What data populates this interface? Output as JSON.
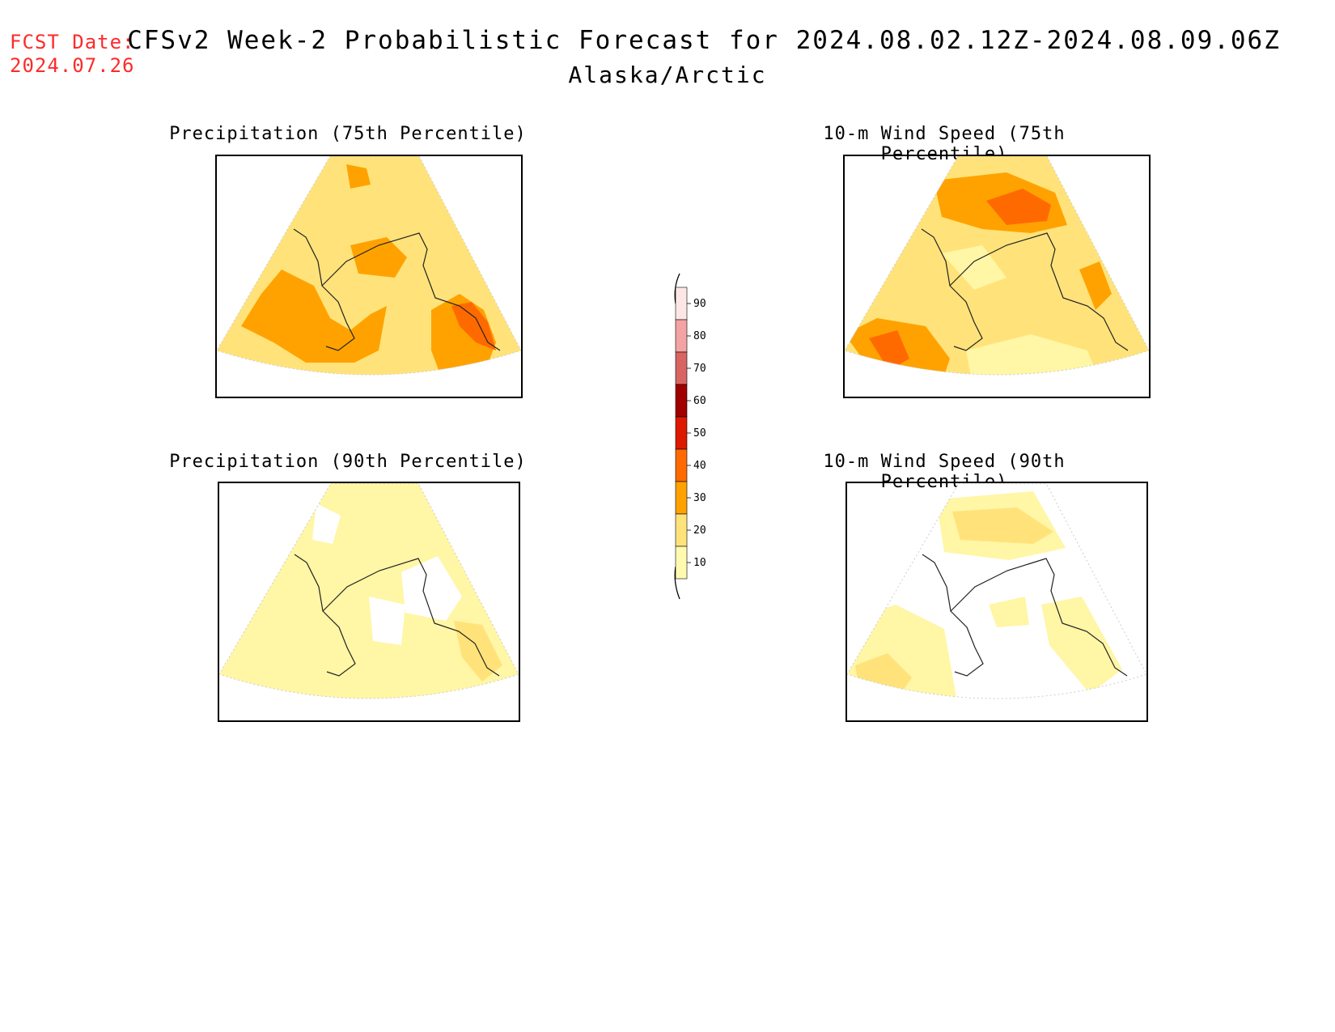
{
  "header": {
    "fcst_label": "FCST Date:",
    "fcst_date": "2024.07.26",
    "title": "CFSv2 Week-2 Probabilistic Forecast for 2024.08.02.12Z-2024.08.09.06Z",
    "subtitle": "Alaska/Arctic"
  },
  "panels": [
    {
      "title": "Precipitation (75th Percentile)"
    },
    {
      "title": "10-m Wind Speed (75th Percentile)"
    },
    {
      "title": "Precipitation (90th Percentile)"
    },
    {
      "title": "10-m Wind Speed (90th Percentile)"
    }
  ],
  "legend": {
    "labels": [
      "90",
      "80",
      "70",
      "60",
      "50",
      "40",
      "30",
      "20",
      "10"
    ],
    "colors": [
      "#fde6e6",
      "#f3a3a3",
      "#d96464",
      "#a00000",
      "#dd1a00",
      "#ff6a00",
      "#ffa200",
      "#ffe37a",
      "#fffab0"
    ]
  },
  "colors": {
    "fcst": "#ff2a2a",
    "c10": "#fff6a6",
    "c20": "#ffe37a",
    "c30": "#ffa200",
    "c40": "#ff6a00",
    "c50": "#e02000"
  }
}
